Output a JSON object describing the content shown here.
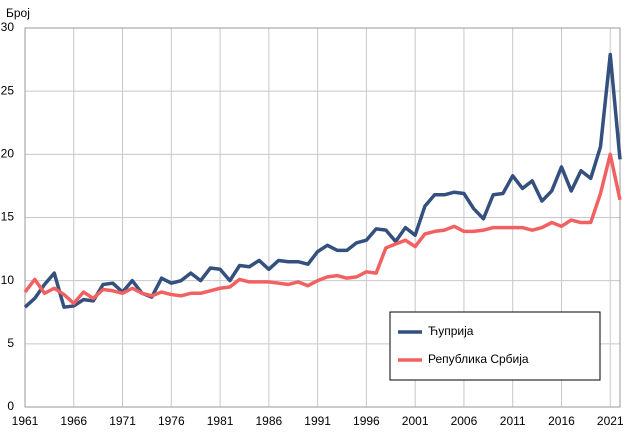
{
  "chart_data": {
    "type": "line",
    "y_label": "Број",
    "x": [
      1961,
      1962,
      1963,
      1964,
      1965,
      1966,
      1967,
      1968,
      1969,
      1970,
      1971,
      1972,
      1973,
      1974,
      1975,
      1976,
      1977,
      1978,
      1979,
      1980,
      1981,
      1982,
      1983,
      1984,
      1985,
      1986,
      1987,
      1988,
      1989,
      1990,
      1991,
      1992,
      1993,
      1994,
      1995,
      1996,
      1997,
      1998,
      1999,
      2000,
      2001,
      2002,
      2003,
      2004,
      2005,
      2006,
      2007,
      2008,
      2009,
      2010,
      2011,
      2012,
      2013,
      2014,
      2015,
      2016,
      2017,
      2018,
      2019,
      2020,
      2021,
      2022
    ],
    "series": [
      {
        "name": "Ћуприја",
        "color": "#34507e",
        "values": [
          7.9,
          8.6,
          9.7,
          10.6,
          7.9,
          8.0,
          8.5,
          8.4,
          9.7,
          9.8,
          9.1,
          10.0,
          9.0,
          8.7,
          10.2,
          9.8,
          10.0,
          10.6,
          10.0,
          11.0,
          10.9,
          10.0,
          11.2,
          11.1,
          11.6,
          10.9,
          11.6,
          11.5,
          11.5,
          11.3,
          12.3,
          12.8,
          12.4,
          12.4,
          13.0,
          13.2,
          14.1,
          14.0,
          13.1,
          14.2,
          13.6,
          15.9,
          16.8,
          16.8,
          17.0,
          16.9,
          15.7,
          14.9,
          16.8,
          16.9,
          18.3,
          17.3,
          17.9,
          16.3,
          17.1,
          19.0,
          17.1,
          18.7,
          18.1,
          20.6,
          27.9,
          19.6
        ]
      },
      {
        "name": "Република Србија",
        "color": "#f26161",
        "values": [
          9.1,
          10.1,
          9.0,
          9.4,
          8.9,
          8.2,
          9.1,
          8.6,
          9.3,
          9.2,
          9.0,
          9.4,
          9.0,
          8.8,
          9.1,
          8.9,
          8.8,
          9.0,
          9.0,
          9.2,
          9.4,
          9.5,
          10.1,
          9.9,
          9.9,
          9.9,
          9.8,
          9.7,
          9.9,
          9.6,
          10.0,
          10.3,
          10.4,
          10.2,
          10.3,
          10.7,
          10.6,
          12.6,
          12.9,
          13.2,
          12.7,
          13.7,
          13.9,
          14.0,
          14.3,
          13.9,
          13.9,
          14.0,
          14.2,
          14.2,
          14.2,
          14.2,
          14.0,
          14.2,
          14.6,
          14.3,
          14.8,
          14.6,
          14.6,
          16.9,
          20.0,
          16.4
        ]
      }
    ],
    "xlim": [
      1961,
      2022
    ],
    "xticks": [
      1961,
      1966,
      1971,
      1976,
      1981,
      1986,
      1991,
      1996,
      2001,
      2006,
      2011,
      2016,
      2021
    ],
    "ylim": [
      0,
      30
    ],
    "yticks": [
      0,
      5,
      10,
      15,
      20,
      25,
      30
    ],
    "grid": true,
    "legend": "lower right"
  }
}
